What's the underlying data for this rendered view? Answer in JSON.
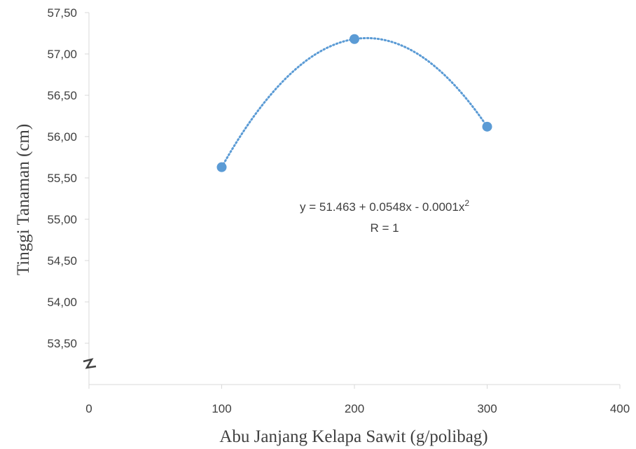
{
  "chart_data": {
    "type": "scatter",
    "xlabel": "Abu Janjang Kelapa Sawit (g/polibag)",
    "ylabel": "Tinggi Tanaman (cm)",
    "xlim": [
      0,
      400
    ],
    "ylim": [
      53.0,
      57.5
    ],
    "x_ticks": [
      "0",
      "100",
      "200",
      "300",
      "400"
    ],
    "y_ticks": [
      "53,50",
      "54,00",
      "54,50",
      "55,00",
      "55,50",
      "56,00",
      "56,50",
      "57,00",
      "57,50"
    ],
    "points": [
      {
        "x": 100,
        "y": 55.63
      },
      {
        "x": 200,
        "y": 57.18
      },
      {
        "x": 300,
        "y": 56.12
      }
    ],
    "trendline": {
      "type": "polynomial-2",
      "style": "dotted",
      "equation_prefix": "y = 51.463 + 0.0548x - 0.0001x",
      "equation_exponent": "2",
      "r_label": "R = 1"
    },
    "axis_break": true,
    "grid": false,
    "marker_color": "#5B9BD5",
    "line_color": "#5B9BD5",
    "axis_color": "#D9D9D9"
  }
}
